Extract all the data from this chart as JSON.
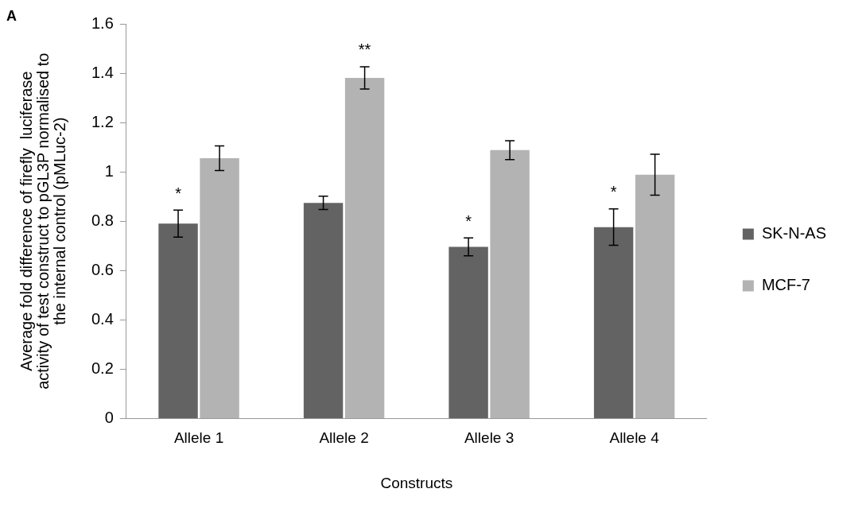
{
  "chart_data": {
    "type": "bar",
    "xlabel": "Constructs",
    "ylabel": "Average fold difference of firefly  luciferase activity of test construct to pGL3P normalised to the internal control (pMLuc-2)",
    "categories": [
      "Allele 1",
      "Allele 2",
      "Allele 3",
      "Allele 4"
    ],
    "series": [
      {
        "name": "SK-N-AS",
        "color": "#636363",
        "values": [
          0.79,
          0.874,
          0.696,
          0.776
        ],
        "errors": [
          0.055,
          0.027,
          0.036,
          0.074
        ]
      },
      {
        "name": "MCF-7",
        "color": "#b3b3b3",
        "values": [
          1.055,
          1.381,
          1.088,
          0.988
        ],
        "errors": [
          0.05,
          0.045,
          0.038,
          0.083
        ]
      }
    ],
    "ylim": [
      0,
      1.6
    ],
    "yticks": [
      0,
      0.2,
      0.4,
      0.6,
      0.8,
      1,
      1.2,
      1.4,
      1.6
    ],
    "grid": false,
    "legend": "right",
    "annotations": [
      "A",
      {
        "text": "*",
        "x": "Allele 1",
        "y": 0.79
      },
      {
        "text": "**",
        "x": "Allele 2",
        "y": 1.381
      },
      {
        "text": "*",
        "x": "Allele 3",
        "y": 0.696
      },
      {
        "text": "*",
        "x": "Allele 4",
        "y": 0.776
      }
    ]
  }
}
